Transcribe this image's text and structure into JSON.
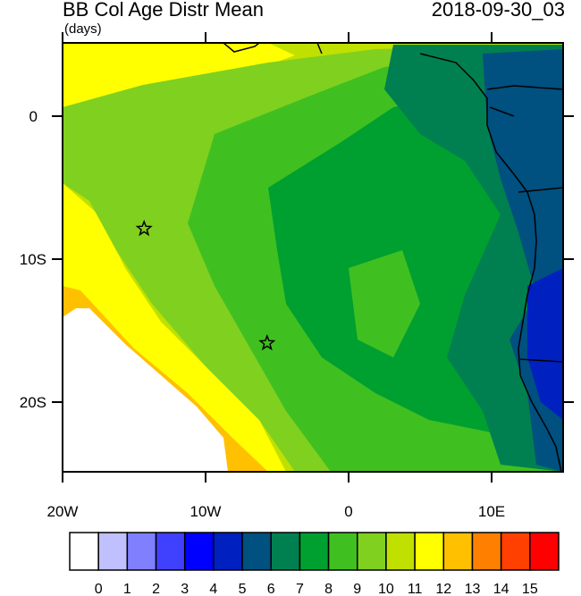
{
  "title": "BB Col Age Distr Mean",
  "units": "(days)",
  "datetime": "2018-09-30_03",
  "axes": {
    "x_ticks": [
      "20W",
      "10W",
      "0",
      "10E"
    ],
    "y_ticks": [
      "0",
      "10S",
      "20S"
    ]
  },
  "colorbar": {
    "labels": [
      "0",
      "1",
      "2",
      "3",
      "4",
      "5",
      "6",
      "7",
      "8",
      "9",
      "10",
      "11",
      "12",
      "13",
      "14",
      "15"
    ],
    "colors": [
      "#ffffff",
      "#c0c0ff",
      "#8080ff",
      "#4040ff",
      "#0000ff",
      "#0020c0",
      "#005080",
      "#008050",
      "#00a030",
      "#40c020",
      "#80d020",
      "#c0e000",
      "#ffff00",
      "#ffc000",
      "#ff8000",
      "#ff4000",
      "#ff0000"
    ]
  },
  "markers": [
    {
      "name": "star-marker-1",
      "lon": -14.3,
      "lat": -8.0
    },
    {
      "name": "star-marker-2",
      "lon": -5.7,
      "lat": -16.0
    }
  ]
}
